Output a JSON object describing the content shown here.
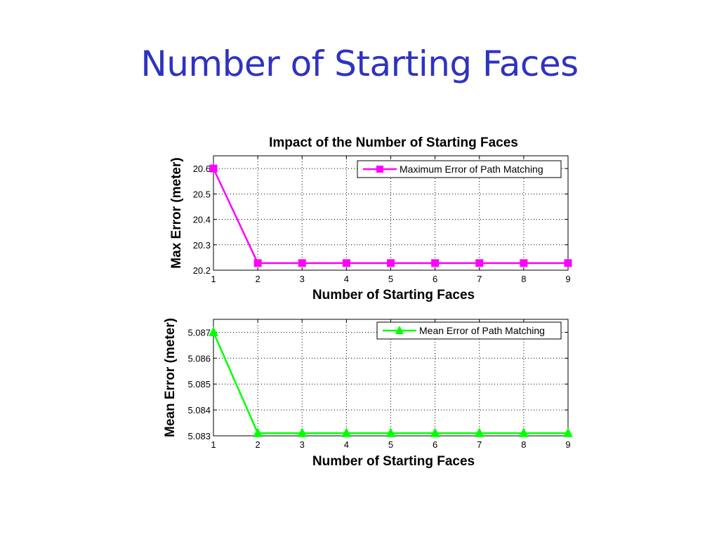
{
  "slide": {
    "title": "Number of Starting Faces"
  },
  "chart_data": [
    {
      "type": "line",
      "title": "Impact of the Number of Starting Faces",
      "xlabel": "Number of Starting Faces",
      "ylabel": "Max Error (meter)",
      "x": [
        1,
        2,
        3,
        4,
        5,
        6,
        7,
        8,
        9
      ],
      "xlim": [
        1,
        9
      ],
      "ylim": [
        20.2,
        20.65
      ],
      "yticks": [
        20.2,
        20.3,
        20.4,
        20.5,
        20.6
      ],
      "yticklabels": [
        "20.2",
        "20.3",
        "20.4",
        "20.5",
        "20.6"
      ],
      "grid": true,
      "legend": "top-right",
      "series": [
        {
          "name": "Maximum Error of Path Matching",
          "values": [
            20.6,
            20.228,
            20.228,
            20.228,
            20.228,
            20.228,
            20.228,
            20.228,
            20.228
          ],
          "color": "#ff00ff",
          "marker": "square"
        }
      ]
    },
    {
      "type": "line",
      "title": "",
      "xlabel": "Number of Starting Faces",
      "ylabel": "Mean Error (meter)",
      "x": [
        1,
        2,
        3,
        4,
        5,
        6,
        7,
        8,
        9
      ],
      "xlim": [
        1,
        9
      ],
      "ylim": [
        5.083,
        5.0875
      ],
      "yticks": [
        5.083,
        5.084,
        5.085,
        5.086,
        5.087
      ],
      "yticklabels": [
        "5.083",
        "5.084",
        "5.085",
        "5.086",
        "5.087"
      ],
      "grid": true,
      "legend": "top-right",
      "series": [
        {
          "name": "Mean Error of Path Matching",
          "values": [
            5.087,
            5.0831,
            5.0831,
            5.0831,
            5.0831,
            5.0831,
            5.0831,
            5.0831,
            5.0831
          ],
          "color": "#00ff00",
          "marker": "triangle"
        }
      ]
    }
  ]
}
